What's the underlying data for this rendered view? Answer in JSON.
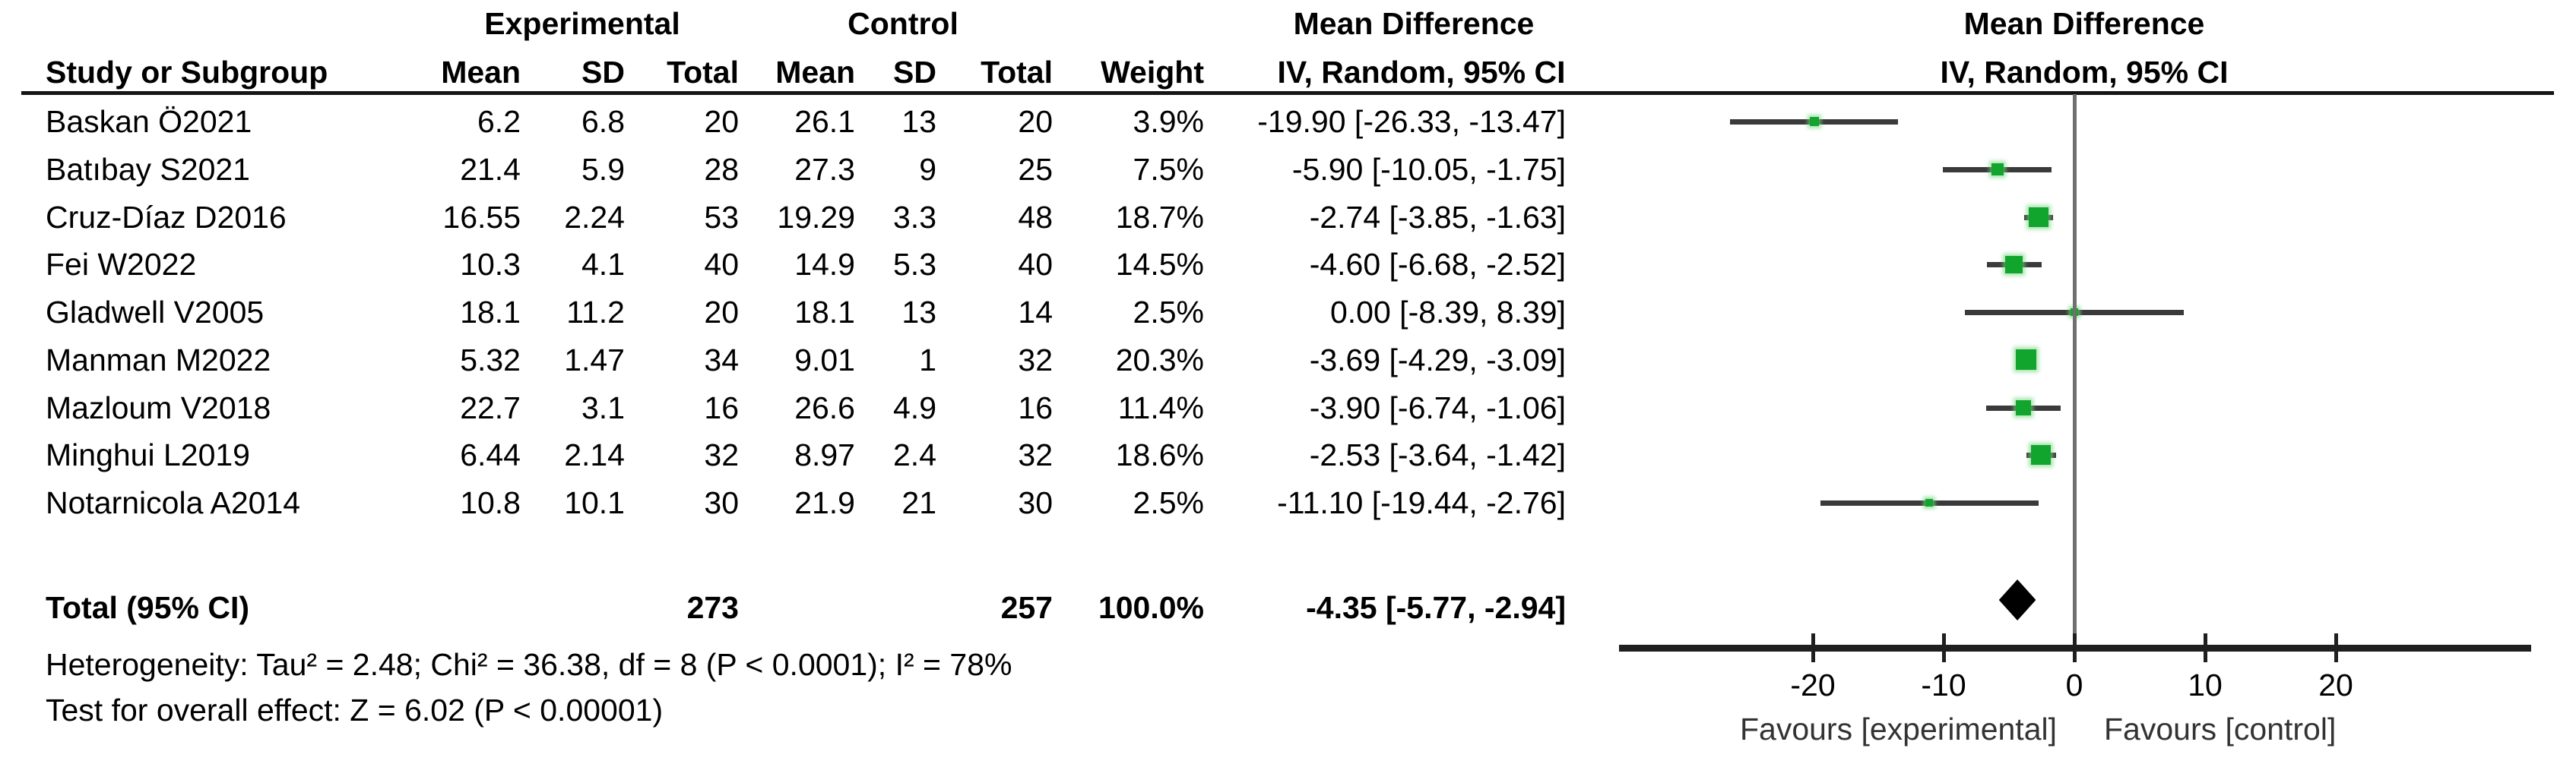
{
  "colors": {
    "square": "#12a52e",
    "square_glow": "rgba(120,215,130,0.65)",
    "ci_line": "#3a3a3a",
    "diamond": "#000000",
    "axis": "#1f1f1f",
    "zero_line": "#6f6f6f"
  },
  "header": {
    "experimental": "Experimental",
    "control": "Control",
    "mean_difference_left": "Mean Difference",
    "mean_difference_right": "Mean Difference",
    "study_or_subgroup": "Study or Subgroup",
    "exp_mean": "Mean",
    "exp_sd": "SD",
    "exp_total": "Total",
    "ctrl_mean": "Mean",
    "ctrl_sd": "SD",
    "ctrl_total": "Total",
    "weight": "Weight",
    "iv_random_left": "IV, Random, 95% CI",
    "iv_random_right": "IV, Random, 95% CI"
  },
  "chart_data": {
    "type": "forest",
    "effect_measure": "Mean Difference",
    "method": "IV, Random, 95% CI",
    "axis": {
      "ticks": [
        -20,
        -10,
        0,
        10,
        20
      ],
      "min": -35,
      "max": 35,
      "favours_left": "Favours [experimental]",
      "favours_right": "Favours [control]"
    },
    "studies": [
      {
        "name": "Baskan Ö2021",
        "exp_mean": "6.2",
        "exp_sd": "6.8",
        "exp_total": "20",
        "ctrl_mean": "26.1",
        "ctrl_sd": "13",
        "ctrl_total": "20",
        "weight": "3.9%",
        "weight_pct": 3.9,
        "md": -19.9,
        "lo": -26.33,
        "hi": -13.47,
        "ci_label": "-19.90 [-26.33, -13.47]"
      },
      {
        "name": "Batıbay S2021",
        "exp_mean": "21.4",
        "exp_sd": "5.9",
        "exp_total": "28",
        "ctrl_mean": "27.3",
        "ctrl_sd": "9",
        "ctrl_total": "25",
        "weight": "7.5%",
        "weight_pct": 7.5,
        "md": -5.9,
        "lo": -10.05,
        "hi": -1.75,
        "ci_label": "-5.90 [-10.05, -1.75]"
      },
      {
        "name": "Cruz-Díaz D2016",
        "exp_mean": "16.55",
        "exp_sd": "2.24",
        "exp_total": "53",
        "ctrl_mean": "19.29",
        "ctrl_sd": "3.3",
        "ctrl_total": "48",
        "weight": "18.7%",
        "weight_pct": 18.7,
        "md": -2.74,
        "lo": -3.85,
        "hi": -1.63,
        "ci_label": "-2.74 [-3.85, -1.63]"
      },
      {
        "name": "Fei W2022",
        "exp_mean": "10.3",
        "exp_sd": "4.1",
        "exp_total": "40",
        "ctrl_mean": "14.9",
        "ctrl_sd": "5.3",
        "ctrl_total": "40",
        "weight": "14.5%",
        "weight_pct": 14.5,
        "md": -4.6,
        "lo": -6.68,
        "hi": -2.52,
        "ci_label": "-4.60 [-6.68, -2.52]"
      },
      {
        "name": "Gladwell V2005",
        "exp_mean": "18.1",
        "exp_sd": "11.2",
        "exp_total": "20",
        "ctrl_mean": "18.1",
        "ctrl_sd": "13",
        "ctrl_total": "14",
        "weight": "2.5%",
        "weight_pct": 2.5,
        "md": 0.0,
        "lo": -8.39,
        "hi": 8.39,
        "ci_label": "0.00 [-8.39, 8.39]"
      },
      {
        "name": "Manman M2022",
        "exp_mean": "5.32",
        "exp_sd": "1.47",
        "exp_total": "34",
        "ctrl_mean": "9.01",
        "ctrl_sd": "1",
        "ctrl_total": "32",
        "weight": "20.3%",
        "weight_pct": 20.3,
        "md": -3.69,
        "lo": -4.29,
        "hi": -3.09,
        "ci_label": "-3.69 [-4.29, -3.09]"
      },
      {
        "name": "Mazloum V2018",
        "exp_mean": "22.7",
        "exp_sd": "3.1",
        "exp_total": "16",
        "ctrl_mean": "26.6",
        "ctrl_sd": "4.9",
        "ctrl_total": "16",
        "weight": "11.4%",
        "weight_pct": 11.4,
        "md": -3.9,
        "lo": -6.74,
        "hi": -1.06,
        "ci_label": "-3.90 [-6.74, -1.06]"
      },
      {
        "name": "Minghui L2019",
        "exp_mean": "6.44",
        "exp_sd": "2.14",
        "exp_total": "32",
        "ctrl_mean": "8.97",
        "ctrl_sd": "2.4",
        "ctrl_total": "32",
        "weight": "18.6%",
        "weight_pct": 18.6,
        "md": -2.53,
        "lo": -3.64,
        "hi": -1.42,
        "ci_label": "-2.53 [-3.64, -1.42]"
      },
      {
        "name": "Notarnicola A2014",
        "exp_mean": "10.8",
        "exp_sd": "10.1",
        "exp_total": "30",
        "ctrl_mean": "21.9",
        "ctrl_sd": "21",
        "ctrl_total": "30",
        "weight": "2.5%",
        "weight_pct": 2.5,
        "md": -11.1,
        "lo": -19.44,
        "hi": -2.76,
        "ci_label": "-11.10 [-19.44, -2.76]"
      }
    ],
    "total": {
      "label": "Total (95% CI)",
      "exp_total": "273",
      "ctrl_total": "257",
      "weight": "100.0%",
      "md": -4.35,
      "lo": -5.77,
      "hi": -2.94,
      "ci_label": "-4.35 [-5.77, -2.94]"
    }
  },
  "footer": {
    "heterogeneity": "Heterogeneity: Tau² = 2.48; Chi² = 36.38, df = 8 (P < 0.0001); I² = 78%",
    "overall_effect": "Test for overall effect: Z = 6.02 (P < 0.00001)"
  }
}
